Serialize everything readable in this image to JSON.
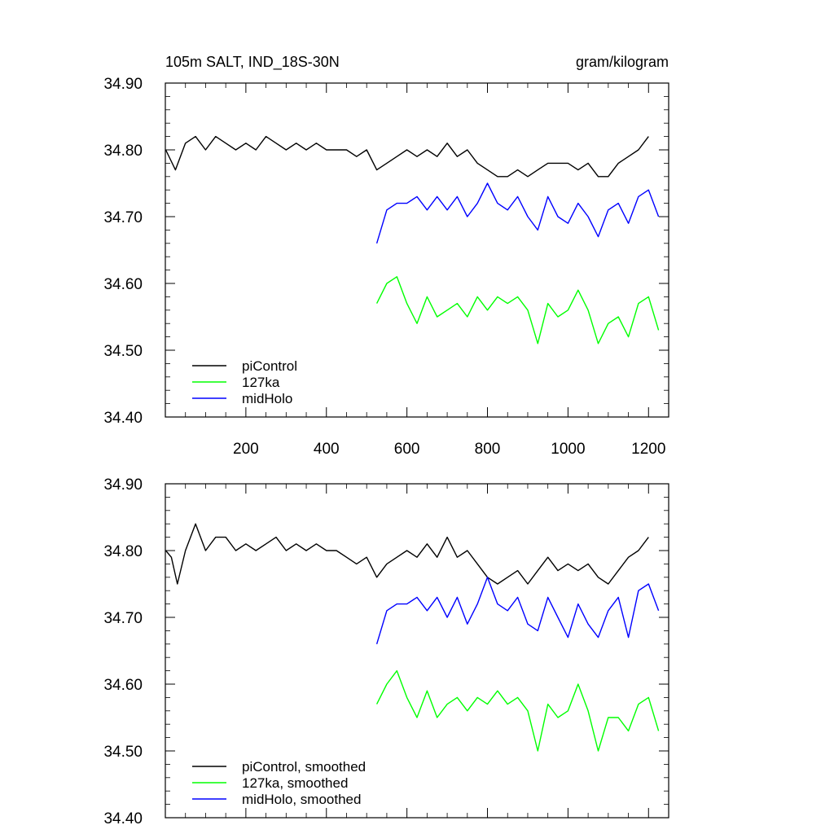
{
  "chart_data": [
    {
      "type": "line",
      "title_left": "105m SALT, IND_18S-30N",
      "title_right": "gram/kilogram",
      "xlim": [
        0,
        1250
      ],
      "ylim": [
        34.4,
        34.9
      ],
      "xticks": [
        200,
        400,
        600,
        800,
        1000,
        1200
      ],
      "xtick_labels": [
        "200",
        "400",
        "600",
        "800",
        "1000",
        "1200"
      ],
      "yticks": [
        34.4,
        34.5,
        34.6,
        34.7,
        34.8,
        34.9
      ],
      "ytick_labels": [
        "34.40",
        "34.50",
        "34.60",
        "34.70",
        "34.80",
        "34.90"
      ],
      "legend_position": "bottom-left",
      "series": [
        {
          "name": "piControl",
          "color": "#000000",
          "x": [
            1,
            25,
            50,
            75,
            100,
            125,
            150,
            175,
            200,
            225,
            250,
            275,
            300,
            325,
            350,
            375,
            400,
            425,
            450,
            475,
            500,
            525,
            550,
            575,
            600,
            625,
            650,
            675,
            700,
            725,
            750,
            775,
            800,
            825,
            850,
            875,
            900,
            925,
            950,
            975,
            1000,
            1025,
            1050,
            1075,
            1100,
            1125,
            1150,
            1175,
            1200
          ],
          "y": [
            34.8,
            34.77,
            34.81,
            34.82,
            34.8,
            34.82,
            34.81,
            34.8,
            34.81,
            34.8,
            34.82,
            34.81,
            34.8,
            34.81,
            34.8,
            34.81,
            34.8,
            34.8,
            34.8,
            34.79,
            34.8,
            34.77,
            34.78,
            34.79,
            34.8,
            34.79,
            34.8,
            34.79,
            34.81,
            34.79,
            34.8,
            34.78,
            34.77,
            34.76,
            34.76,
            34.77,
            34.76,
            34.77,
            34.78,
            34.78,
            34.78,
            34.77,
            34.78,
            34.76,
            34.76,
            34.78,
            34.79,
            34.8,
            34.82
          ]
        },
        {
          "name": "127ka",
          "color": "#00ff00",
          "x": [
            525,
            550,
            575,
            600,
            625,
            650,
            675,
            700,
            725,
            750,
            775,
            800,
            825,
            850,
            875,
            900,
            925,
            950,
            975,
            1000,
            1025,
            1050,
            1075,
            1100,
            1125,
            1150,
            1175,
            1200,
            1225
          ],
          "y": [
            34.57,
            34.6,
            34.61,
            34.57,
            34.54,
            34.58,
            34.55,
            34.56,
            34.57,
            34.55,
            34.58,
            34.56,
            34.58,
            34.57,
            34.58,
            34.56,
            34.51,
            34.57,
            34.55,
            34.56,
            34.59,
            34.56,
            34.51,
            34.54,
            34.55,
            34.52,
            34.57,
            34.58,
            34.53
          ]
        },
        {
          "name": "midHolo",
          "color": "#0000ff",
          "x": [
            525,
            550,
            575,
            600,
            625,
            650,
            675,
            700,
            725,
            750,
            775,
            800,
            825,
            850,
            875,
            900,
            925,
            950,
            975,
            1000,
            1025,
            1050,
            1075,
            1100,
            1125,
            1150,
            1175,
            1200,
            1225
          ],
          "y": [
            34.66,
            34.71,
            34.72,
            34.72,
            34.73,
            34.71,
            34.73,
            34.71,
            34.73,
            34.7,
            34.72,
            34.75,
            34.72,
            34.71,
            34.73,
            34.7,
            34.68,
            34.73,
            34.7,
            34.69,
            34.72,
            34.7,
            34.67,
            34.71,
            34.72,
            34.69,
            34.73,
            34.74,
            34.7
          ]
        }
      ]
    },
    {
      "type": "line",
      "xlim": [
        0,
        1250
      ],
      "ylim": [
        34.4,
        34.9
      ],
      "xticks": [
        200,
        400,
        600,
        800,
        1000,
        1200
      ],
      "yticks": [
        34.4,
        34.5,
        34.6,
        34.7,
        34.8,
        34.9
      ],
      "ytick_labels": [
        "34.40",
        "34.50",
        "34.60",
        "34.70",
        "34.80",
        "34.90"
      ],
      "legend_position": "bottom-left",
      "series": [
        {
          "name": "piControl, smoothed",
          "color": "#000000",
          "x": [
            1,
            15,
            30,
            50,
            75,
            100,
            125,
            150,
            175,
            200,
            225,
            250,
            275,
            300,
            325,
            350,
            375,
            400,
            425,
            450,
            475,
            500,
            525,
            550,
            575,
            600,
            625,
            650,
            675,
            700,
            725,
            750,
            775,
            800,
            825,
            850,
            875,
            900,
            925,
            950,
            975,
            1000,
            1025,
            1050,
            1075,
            1100,
            1125,
            1150,
            1175,
            1200
          ],
          "y": [
            34.8,
            34.79,
            34.75,
            34.8,
            34.84,
            34.8,
            34.82,
            34.82,
            34.8,
            34.81,
            34.8,
            34.81,
            34.82,
            34.8,
            34.81,
            34.8,
            34.81,
            34.8,
            34.8,
            34.79,
            34.78,
            34.79,
            34.76,
            34.78,
            34.79,
            34.8,
            34.79,
            34.81,
            34.79,
            34.82,
            34.79,
            34.8,
            34.78,
            34.76,
            34.75,
            34.76,
            34.77,
            34.75,
            34.77,
            34.79,
            34.77,
            34.78,
            34.77,
            34.78,
            34.76,
            34.75,
            34.77,
            34.79,
            34.8,
            34.82
          ]
        },
        {
          "name": "127ka, smoothed",
          "color": "#00ff00",
          "x": [
            525,
            550,
            575,
            600,
            625,
            650,
            675,
            700,
            725,
            750,
            775,
            800,
            825,
            850,
            875,
            900,
            925,
            950,
            975,
            1000,
            1025,
            1050,
            1075,
            1100,
            1125,
            1150,
            1175,
            1200,
            1225
          ],
          "y": [
            34.57,
            34.6,
            34.62,
            34.58,
            34.55,
            34.59,
            34.55,
            34.57,
            34.58,
            34.56,
            34.58,
            34.57,
            34.59,
            34.57,
            34.58,
            34.56,
            34.5,
            34.57,
            34.55,
            34.56,
            34.6,
            34.56,
            34.5,
            34.55,
            34.55,
            34.53,
            34.57,
            34.58,
            34.53
          ]
        },
        {
          "name": "midHolo, smoothed",
          "color": "#0000ff",
          "x": [
            525,
            550,
            575,
            600,
            625,
            650,
            675,
            700,
            725,
            750,
            775,
            800,
            825,
            850,
            875,
            900,
            925,
            950,
            975,
            1000,
            1025,
            1050,
            1075,
            1100,
            1125,
            1150,
            1175,
            1200,
            1225
          ],
          "y": [
            34.66,
            34.71,
            34.72,
            34.72,
            34.73,
            34.71,
            34.73,
            34.7,
            34.73,
            34.69,
            34.72,
            34.76,
            34.72,
            34.71,
            34.73,
            34.69,
            34.68,
            34.73,
            34.7,
            34.67,
            34.72,
            34.69,
            34.67,
            34.71,
            34.73,
            34.67,
            34.74,
            34.75,
            34.71
          ]
        }
      ]
    }
  ]
}
